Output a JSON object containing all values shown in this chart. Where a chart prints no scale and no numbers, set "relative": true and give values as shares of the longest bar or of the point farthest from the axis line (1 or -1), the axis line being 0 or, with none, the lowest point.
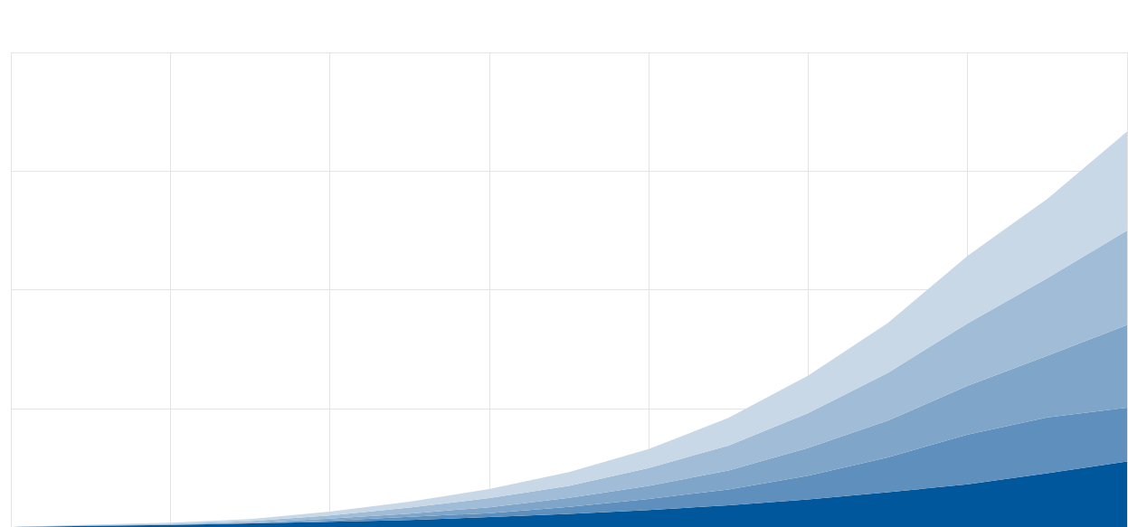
{
  "chart_data": {
    "type": "area",
    "relative": true,
    "stacked": true,
    "grid": true,
    "categories": [
      null,
      null,
      null,
      null,
      null,
      null,
      null,
      null,
      null,
      null,
      null,
      null,
      null,
      null,
      null
    ],
    "series": [
      {
        "color": "#00579b",
        "values": [
          0,
          0.003,
          0.005,
          0.009,
          0.013,
          0.018,
          0.025,
          0.033,
          0.043,
          0.055,
          0.07,
          0.088,
          0.108,
          0.136,
          0.166
        ]
      },
      {
        "color": "#5f8fbc",
        "values": [
          0,
          0.0,
          0.001,
          0.001,
          0.003,
          0.008,
          0.01,
          0.018,
          0.028,
          0.04,
          0.06,
          0.088,
          0.126,
          0.141,
          0.136
        ]
      },
      {
        "color": "#7fa5c9",
        "values": [
          0,
          0.001,
          0.001,
          0.001,
          0.005,
          0.008,
          0.015,
          0.023,
          0.033,
          0.048,
          0.07,
          0.093,
          0.123,
          0.156,
          0.209
        ]
      },
      {
        "color": "#a0bcd6",
        "values": [
          0,
          0.001,
          0.001,
          0.004,
          0.008,
          0.015,
          0.023,
          0.03,
          0.045,
          0.063,
          0.088,
          0.121,
          0.158,
          0.196,
          0.239
        ]
      },
      {
        "color": "#c8d8e6",
        "values": [
          0,
          0.001,
          0.003,
          0.005,
          0.01,
          0.015,
          0.023,
          0.035,
          0.048,
          0.07,
          0.095,
          0.126,
          0.171,
          0.201,
          0.25
        ]
      }
    ]
  }
}
